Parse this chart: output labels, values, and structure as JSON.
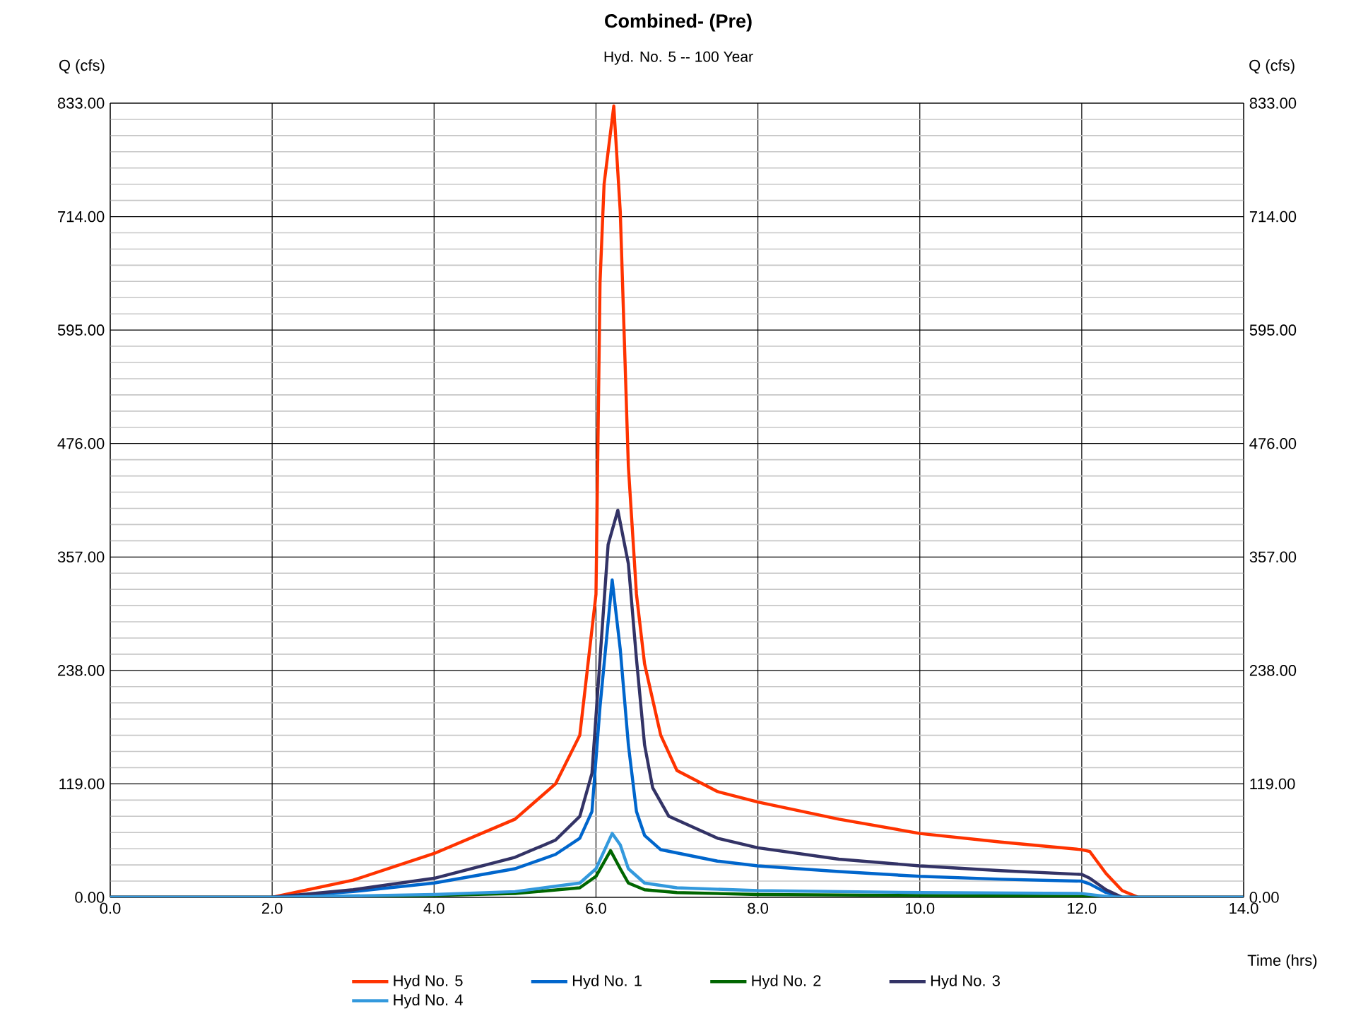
{
  "chart_data": {
    "type": "line",
    "title": "Combined- (Pre)",
    "subtitle": "Hyd. No. 5 -- 100 Year",
    "xlabel": "Time (hrs)",
    "ylabel": "Q (cfs)",
    "y2label": "Q (cfs)",
    "xlim": [
      0,
      14
    ],
    "ylim": [
      0,
      833
    ],
    "y2lim": [
      0,
      833
    ],
    "xticks": [
      {
        "value": 0,
        "label": "0.0"
      },
      {
        "value": 2,
        "label": "2.0"
      },
      {
        "value": 4,
        "label": "4.0"
      },
      {
        "value": 6,
        "label": "6.0"
      },
      {
        "value": 8,
        "label": "8.0"
      },
      {
        "value": 10,
        "label": "10.0"
      },
      {
        "value": 12,
        "label": "12.0"
      },
      {
        "value": 14,
        "label": "14.0"
      }
    ],
    "yticks": [
      {
        "value": 0,
        "label": "0.00"
      },
      {
        "value": 119,
        "label": "119.00"
      },
      {
        "value": 238,
        "label": "238.00"
      },
      {
        "value": 357,
        "label": "357.00"
      },
      {
        "value": 476,
        "label": "476.00"
      },
      {
        "value": 595,
        "label": "595.00"
      },
      {
        "value": 714,
        "label": "714.00"
      },
      {
        "value": 833,
        "label": "833.00"
      }
    ],
    "y2ticks": [
      {
        "value": 0,
        "label": "0.00"
      },
      {
        "value": 119,
        "label": "119.00"
      },
      {
        "value": 238,
        "label": "238.00"
      },
      {
        "value": 357,
        "label": "357.00"
      },
      {
        "value": 476,
        "label": "476.00"
      },
      {
        "value": 595,
        "label": "595.00"
      },
      {
        "value": 714,
        "label": "714.00"
      },
      {
        "value": 833,
        "label": "833.00"
      }
    ],
    "grid": true,
    "legend": "bottom",
    "marker": "none",
    "line_style": "solid",
    "series": [
      {
        "name": "Hyd No. 5",
        "color": "#ff3300",
        "x": [
          0,
          2,
          3,
          4,
          5,
          5.5,
          5.8,
          6.0,
          6.05,
          6.1,
          6.22,
          6.3,
          6.4,
          6.5,
          6.6,
          6.8,
          7.0,
          7.5,
          8,
          9,
          10,
          11,
          12,
          12.1,
          12.3,
          12.5,
          12.7,
          14
        ],
        "values": [
          0,
          0,
          18,
          46,
          82,
          119,
          170,
          318,
          645,
          748,
          830,
          719,
          452,
          318,
          245,
          170,
          133,
          111,
          100,
          82,
          67,
          58,
          50,
          48,
          25,
          7,
          0,
          0
        ]
      },
      {
        "name": "Hyd No. 1",
        "color": "#0066cc",
        "x": [
          0,
          2,
          3,
          4,
          5,
          5.5,
          5.8,
          5.95,
          6.05,
          6.2,
          6.3,
          6.4,
          6.5,
          6.6,
          6.8,
          7.5,
          8,
          9,
          10,
          11,
          12,
          12.1,
          12.3,
          12.5,
          14
        ],
        "values": [
          0,
          0,
          6,
          15,
          30,
          45,
          62,
          90,
          200,
          333,
          260,
          160,
          90,
          65,
          50,
          38,
          33,
          27,
          22,
          19,
          17,
          14,
          5,
          0,
          0
        ]
      },
      {
        "name": "Hyd No. 2",
        "color": "#006600",
        "x": [
          0,
          2,
          4,
          5,
          5.8,
          6.0,
          6.18,
          6.3,
          6.4,
          6.6,
          7,
          8,
          10,
          12,
          12.3,
          14
        ],
        "values": [
          0,
          0,
          2,
          4,
          10,
          22,
          49,
          30,
          15,
          8,
          5,
          3,
          2,
          1,
          0,
          0
        ]
      },
      {
        "name": "Hyd No. 3",
        "color": "#333366",
        "x": [
          0,
          2,
          3,
          4,
          5,
          5.5,
          5.8,
          5.95,
          6.05,
          6.15,
          6.27,
          6.4,
          6.5,
          6.6,
          6.7,
          6.9,
          7.5,
          8,
          9,
          10,
          11,
          12,
          12.1,
          12.3,
          12.5,
          14
        ],
        "values": [
          0,
          0,
          8,
          20,
          42,
          60,
          85,
          130,
          250,
          370,
          406,
          350,
          250,
          160,
          115,
          85,
          62,
          52,
          40,
          33,
          28,
          24,
          20,
          8,
          0,
          0
        ]
      },
      {
        "name": "Hyd No. 4",
        "color": "#3399dd",
        "x": [
          0,
          2,
          4,
          5,
          5.8,
          6.0,
          6.2,
          6.3,
          6.4,
          6.6,
          7,
          8,
          10,
          12,
          12.3,
          12.5,
          14
        ],
        "values": [
          0,
          0,
          3,
          6,
          15,
          30,
          67,
          55,
          30,
          15,
          10,
          7,
          5,
          4,
          1,
          0,
          0
        ]
      }
    ]
  }
}
